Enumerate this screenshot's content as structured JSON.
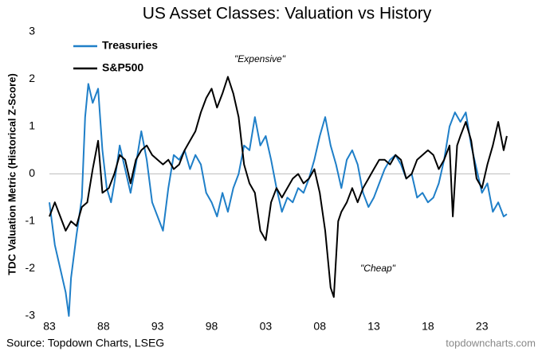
{
  "chart_data": {
    "type": "line",
    "title": "US Asset Classes: Valuation vs History",
    "ylabel": "TDC Valuation Metric (Historical Z-Score)",
    "source": "Source: Topdown Charts, LSEG",
    "watermark": "topdowncharts.com",
    "annotations": [
      "\"Expensive\"",
      "\"Cheap\""
    ],
    "legend": "upper left",
    "grid": false,
    "xlim": [
      1983,
      2025.6
    ],
    "ylim": [
      -3,
      3
    ],
    "yticks": [
      -3,
      -2,
      -1,
      0,
      1,
      2,
      3
    ],
    "xticks": [
      {
        "value": 1983,
        "label": "83"
      },
      {
        "value": 1988,
        "label": "88"
      },
      {
        "value": 1993,
        "label": "93"
      },
      {
        "value": 1998,
        "label": "98"
      },
      {
        "value": 2003,
        "label": "03"
      },
      {
        "value": 2008,
        "label": "08"
      },
      {
        "value": 2013,
        "label": "13"
      },
      {
        "value": 2018,
        "label": "18"
      },
      {
        "value": 2023,
        "label": "23"
      }
    ],
    "series": [
      {
        "name": "Treasuries",
        "color": "#1f7fc8",
        "x": [
          1983.0,
          1983.5,
          1984.0,
          1984.5,
          1984.8,
          1985.0,
          1985.5,
          1986.0,
          1986.3,
          1986.6,
          1987.0,
          1987.5,
          1987.9,
          1988.3,
          1988.7,
          1989.0,
          1989.5,
          1990.0,
          1990.5,
          1991.0,
          1991.5,
          1992.0,
          1992.5,
          1993.0,
          1993.5,
          1994.0,
          1994.5,
          1995.0,
          1995.5,
          1996.0,
          1996.5,
          1997.0,
          1997.5,
          1998.0,
          1998.5,
          1999.0,
          1999.5,
          2000.0,
          2000.5,
          2001.0,
          2001.5,
          2002.0,
          2002.5,
          2003.0,
          2003.5,
          2004.0,
          2004.5,
          2005.0,
          2005.5,
          2006.0,
          2006.5,
          2007.0,
          2007.5,
          2008.0,
          2008.5,
          2009.0,
          2009.5,
          2010.0,
          2010.5,
          2011.0,
          2011.5,
          2012.0,
          2012.5,
          2013.0,
          2013.5,
          2014.0,
          2014.5,
          2015.0,
          2015.5,
          2016.0,
          2016.5,
          2017.0,
          2017.5,
          2018.0,
          2018.5,
          2019.0,
          2019.5,
          2020.0,
          2020.5,
          2021.0,
          2021.5,
          2022.0,
          2022.5,
          2023.0,
          2023.5,
          2024.0,
          2024.5,
          2025.0,
          2025.3
        ],
        "values": [
          -0.6,
          -1.5,
          -2.0,
          -2.5,
          -3.0,
          -2.2,
          -1.3,
          -0.5,
          1.2,
          1.9,
          1.5,
          1.8,
          0.5,
          -0.3,
          -0.6,
          -0.2,
          0.6,
          0.1,
          -0.4,
          0.2,
          0.9,
          0.3,
          -0.6,
          -0.9,
          -1.2,
          -0.3,
          0.4,
          0.3,
          0.5,
          0.1,
          0.4,
          0.2,
          -0.4,
          -0.6,
          -0.9,
          -0.4,
          -0.8,
          -0.3,
          0.0,
          0.6,
          0.5,
          1.2,
          0.6,
          0.8,
          0.3,
          -0.3,
          -0.8,
          -0.5,
          -0.6,
          -0.3,
          -0.4,
          -0.1,
          0.3,
          0.8,
          1.2,
          0.6,
          0.2,
          -0.3,
          0.3,
          0.5,
          0.2,
          -0.4,
          -0.7,
          -0.5,
          -0.2,
          0.1,
          0.3,
          0.4,
          0.2,
          -0.1,
          0.0,
          -0.5,
          -0.4,
          -0.6,
          -0.5,
          -0.2,
          0.3,
          1.0,
          1.3,
          1.1,
          1.3,
          0.6,
          0.1,
          -0.4,
          -0.2,
          -0.8,
          -0.6,
          -0.9,
          -0.85
        ]
      },
      {
        "name": "S&P500",
        "color": "#000000",
        "x": [
          1983.0,
          1983.5,
          1984.0,
          1984.5,
          1985.0,
          1985.5,
          1986.0,
          1986.5,
          1987.0,
          1987.5,
          1987.9,
          1988.5,
          1989.0,
          1989.5,
          1990.0,
          1990.5,
          1991.0,
          1991.5,
          1992.0,
          1992.5,
          1993.0,
          1993.5,
          1994.0,
          1994.5,
          1995.0,
          1995.5,
          1996.0,
          1996.5,
          1997.0,
          1997.5,
          1998.0,
          1998.5,
          1999.0,
          1999.5,
          2000.0,
          2000.5,
          2001.0,
          2001.5,
          2002.0,
          2002.5,
          2003.0,
          2003.5,
          2004.0,
          2004.5,
          2005.0,
          2005.5,
          2006.0,
          2006.5,
          2007.0,
          2007.5,
          2008.0,
          2008.5,
          2009.0,
          2009.3,
          2009.7,
          2010.0,
          2010.5,
          2011.0,
          2011.5,
          2012.0,
          2012.5,
          2013.0,
          2013.5,
          2014.0,
          2014.5,
          2015.0,
          2015.5,
          2016.0,
          2016.5,
          2017.0,
          2017.5,
          2018.0,
          2018.5,
          2019.0,
          2019.5,
          2020.0,
          2020.3,
          2020.7,
          2021.0,
          2021.5,
          2022.0,
          2022.5,
          2023.0,
          2023.5,
          2024.0,
          2024.5,
          2025.0,
          2025.3
        ],
        "values": [
          -0.9,
          -0.6,
          -0.9,
          -1.2,
          -1.0,
          -1.1,
          -0.7,
          -0.6,
          0.1,
          0.7,
          -0.4,
          -0.3,
          0.0,
          0.4,
          0.3,
          -0.2,
          0.3,
          0.5,
          0.6,
          0.4,
          0.3,
          0.2,
          0.3,
          0.1,
          0.2,
          0.5,
          0.7,
          0.9,
          1.3,
          1.6,
          1.8,
          1.4,
          1.7,
          2.05,
          1.7,
          1.2,
          0.2,
          -0.2,
          -0.4,
          -1.2,
          -1.4,
          -0.6,
          -0.3,
          -0.5,
          -0.3,
          -0.1,
          0.0,
          -0.2,
          -0.1,
          0.1,
          -0.4,
          -1.2,
          -2.4,
          -2.6,
          -1.0,
          -0.8,
          -0.6,
          -0.3,
          -0.6,
          -0.3,
          -0.1,
          0.1,
          0.3,
          0.3,
          0.2,
          0.4,
          0.3,
          -0.1,
          0.0,
          0.3,
          0.4,
          0.5,
          0.4,
          0.1,
          0.3,
          0.6,
          -0.9,
          0.6,
          0.8,
          1.1,
          0.7,
          -0.1,
          -0.3,
          0.2,
          0.6,
          1.1,
          0.5,
          0.8
        ]
      }
    ]
  }
}
